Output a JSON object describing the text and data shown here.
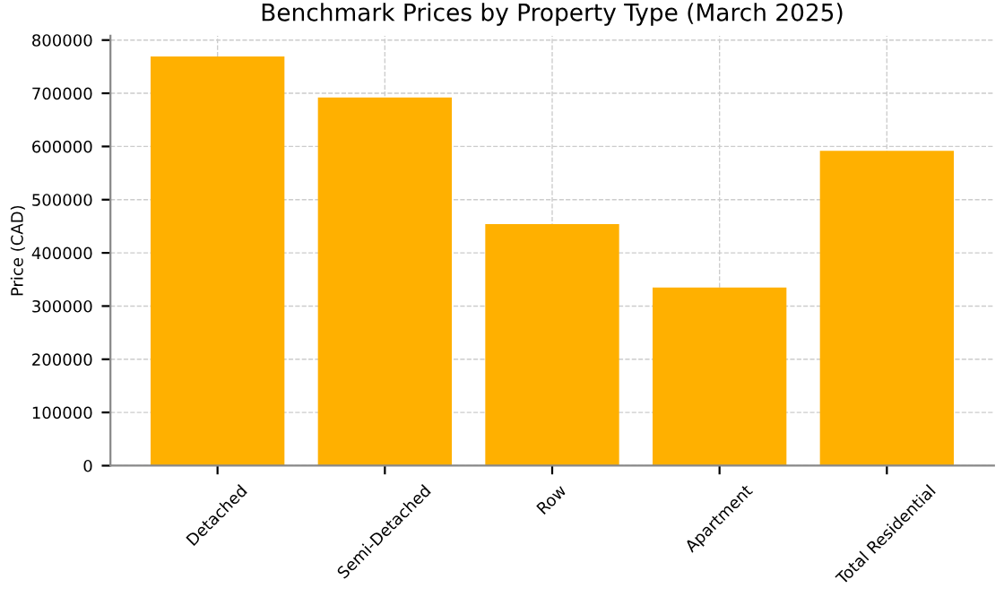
{
  "chart_data": {
    "type": "bar",
    "title": "Benchmark Prices by Property Type (March 2025)",
    "ylabel": "Price (CAD)",
    "categories": [
      "Detached",
      "Semi-Detached",
      "Row",
      "Apartment",
      "Total Residential"
    ],
    "values": [
      769000,
      692000,
      454000,
      335000,
      592000
    ],
    "color": "#ffb000",
    "ylim": [
      0,
      808000
    ],
    "yticks": [
      0,
      100000,
      200000,
      300000,
      400000,
      500000,
      600000,
      700000,
      800000
    ],
    "grid": true
  }
}
